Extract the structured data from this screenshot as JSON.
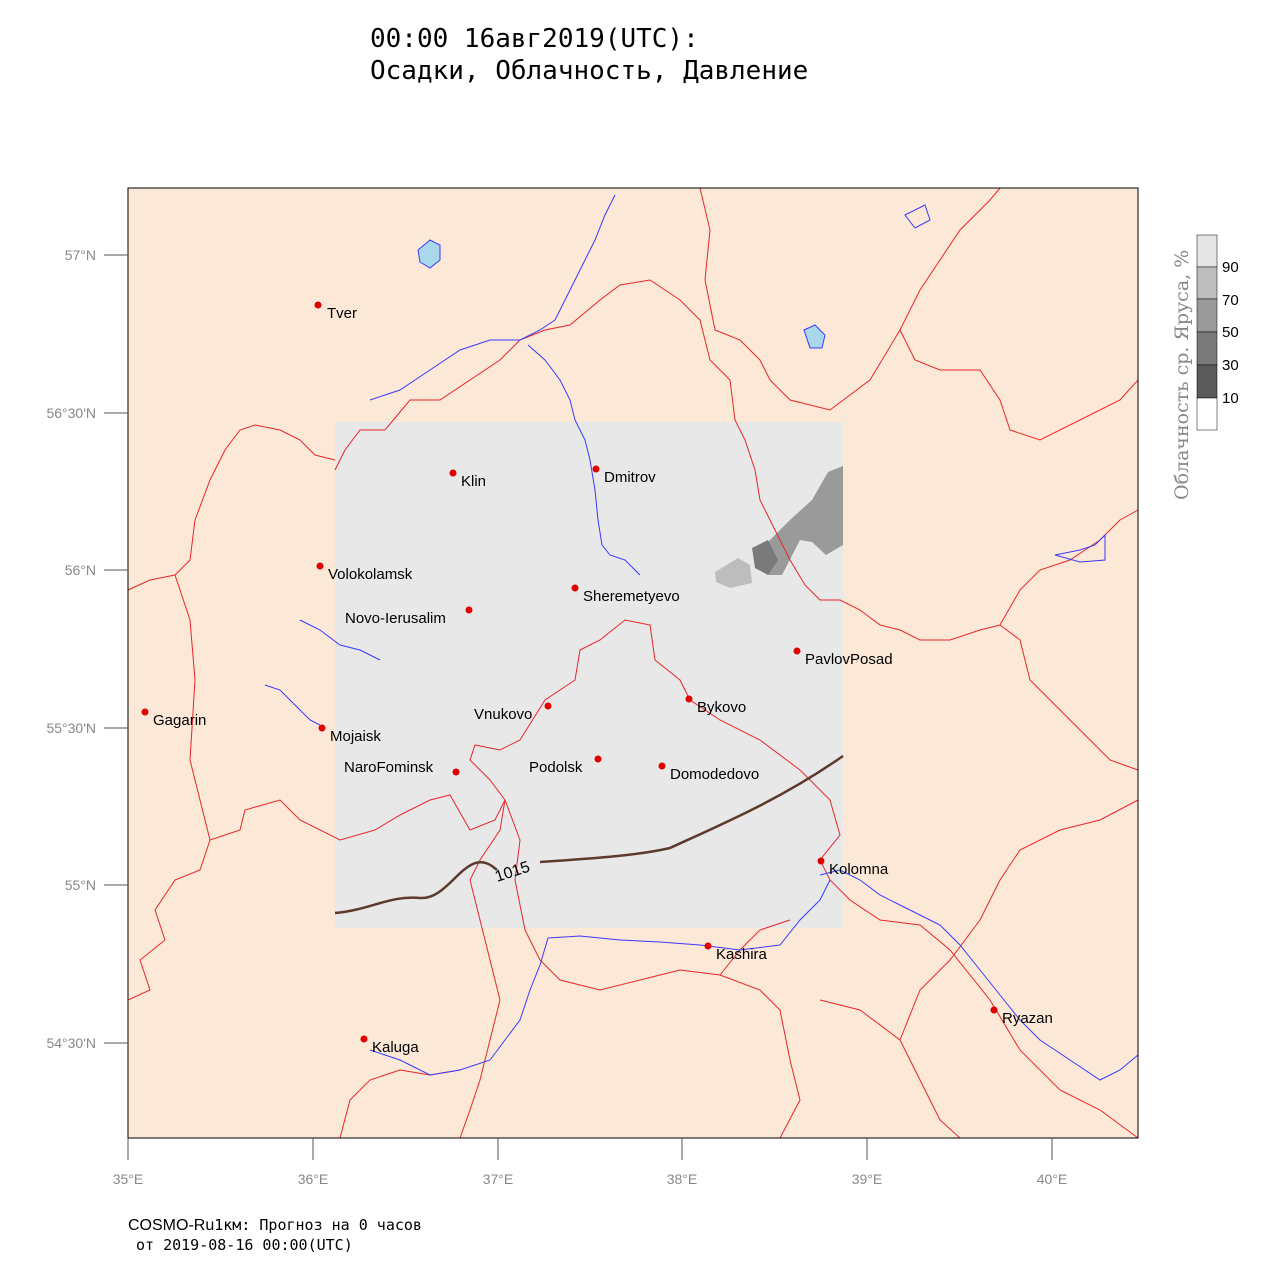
{
  "title": {
    "line1": "00:00 16авг2019(UTC):",
    "line2": "Осадки, Облачность, Давление"
  },
  "map": {
    "background_color": "#fbe8d6",
    "domain_color": "#e8e8e8",
    "border_color": "#e8262a",
    "water_color": "#3a3aff",
    "lake_fill": "#a8d8ea",
    "isobar_color": "#5c3a2e",
    "isobar_label": "1015",
    "lat_labels": [
      "57°N",
      "56°30'N",
      "56°N",
      "55°30'N",
      "55°N",
      "54°30'N"
    ],
    "lon_labels": [
      "35°E",
      "36°E",
      "37°E",
      "38°E",
      "39°E",
      "40°E"
    ],
    "cities": [
      {
        "name": "Tver"
      },
      {
        "name": "Klin"
      },
      {
        "name": "Dmitrov"
      },
      {
        "name": "Volokolamsk"
      },
      {
        "name": "Sheremetyevo"
      },
      {
        "name": "Novo-Ierusalim"
      },
      {
        "name": "PavlovPosad"
      },
      {
        "name": "Gagarin"
      },
      {
        "name": "Bykovo"
      },
      {
        "name": "Vnukovo"
      },
      {
        "name": "Mojaisk"
      },
      {
        "name": "Podolsk"
      },
      {
        "name": "NaroFominsk"
      },
      {
        "name": "Domodedovo"
      },
      {
        "name": "Kolomna"
      },
      {
        "name": "Kashira"
      },
      {
        "name": "Ryazan"
      },
      {
        "name": "Kaluga"
      }
    ]
  },
  "legend": {
    "title": "Облачность ср. Яруса, %",
    "levels": [
      "90",
      "70",
      "50",
      "30",
      "10"
    ],
    "colors": [
      "#e6e6e6",
      "#bdbdbd",
      "#9a9a9a",
      "#7a7a7a",
      "#5a5a5a",
      "#ffffff"
    ]
  },
  "footer": {
    "model": "COSMO-Ru",
    "line1_rest": "1км: Прогноз на 0 часов",
    "line2": "от 2019-08-16 00:00(UTC)"
  }
}
